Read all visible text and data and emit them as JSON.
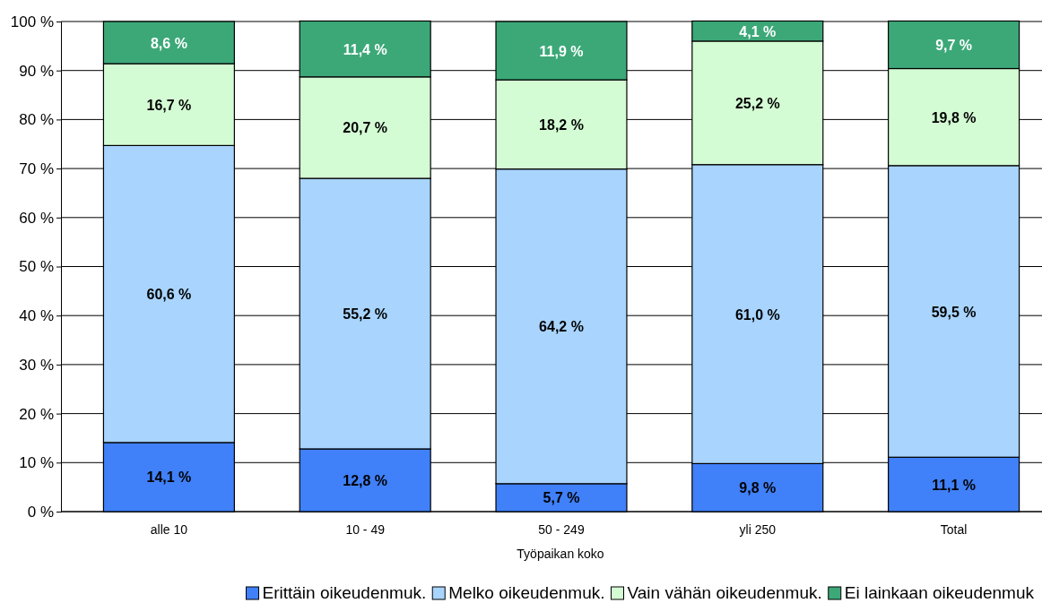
{
  "chart_data": {
    "type": "bar",
    "stacked": true,
    "xlabel": "Työpaikan koko",
    "categories": [
      "alle 10",
      "10 - 49",
      "50 - 249",
      "yli 250",
      "Total"
    ],
    "series": [
      {
        "name": "Erittäin oikeudenmuk.",
        "color": "#4080f8",
        "values": [
          14.1,
          12.8,
          5.7,
          9.8,
          11.1
        ],
        "value_labels": [
          "14,1 %",
          "12,8 %",
          "5,7 %",
          "9,8 %",
          "11,1 %"
        ]
      },
      {
        "name": "Melko oikeudenmuk.",
        "color": "#a8d4fe",
        "values": [
          60.6,
          55.2,
          64.2,
          61.0,
          59.5
        ],
        "value_labels": [
          "60,6 %",
          "55,2 %",
          "64,2 %",
          "61,0 %",
          "59,5 %"
        ]
      },
      {
        "name": "Vain vähän oikeudenmuk.",
        "color": "#d4fcd4",
        "values": [
          16.7,
          20.7,
          18.2,
          25.2,
          19.8
        ],
        "value_labels": [
          "16,7 %",
          "20,7 %",
          "18,2 %",
          "25,2 %",
          "19,8 %"
        ]
      },
      {
        "name": "Ei lainkaan oikeudenmuk",
        "color": "#3ca878",
        "values": [
          8.6,
          11.4,
          11.9,
          4.1,
          9.7
        ],
        "value_labels": [
          "8,6 %",
          "11,4 %",
          "11,9 %",
          "4,1 %",
          "9,7 %"
        ]
      }
    ],
    "ylim": [
      0,
      100
    ],
    "yticks": [
      {
        "value": 0,
        "label": "0 %"
      },
      {
        "value": 10,
        "label": "10 %"
      },
      {
        "value": 20,
        "label": "20 %"
      },
      {
        "value": 30,
        "label": "30 %"
      },
      {
        "value": 40,
        "label": "40 %"
      },
      {
        "value": 50,
        "label": "50 %"
      },
      {
        "value": 60,
        "label": "60 %"
      },
      {
        "value": 70,
        "label": "70 %"
      },
      {
        "value": 80,
        "label": "80 %"
      },
      {
        "value": 90,
        "label": "90 %"
      },
      {
        "value": 100,
        "label": "100 %"
      }
    ],
    "grid": "y",
    "legend": "bottom"
  }
}
